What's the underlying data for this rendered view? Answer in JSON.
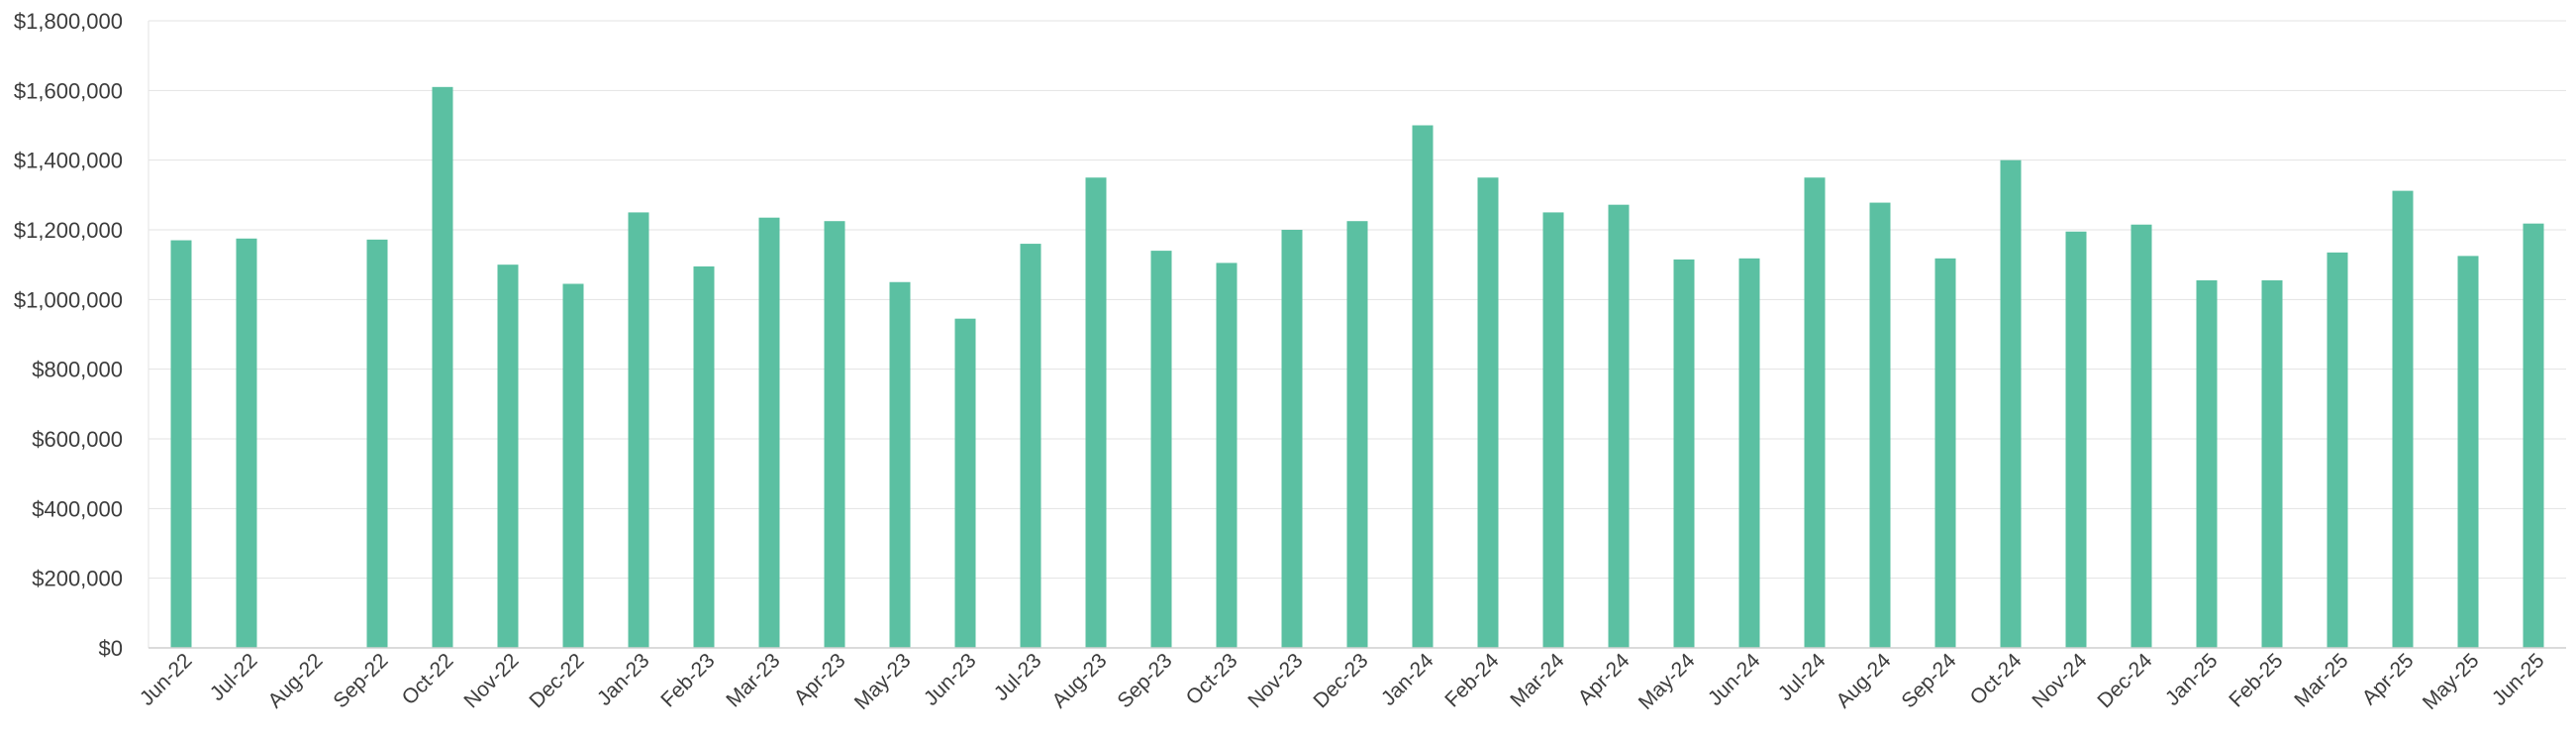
{
  "chart_data": {
    "type": "bar",
    "title": "",
    "xlabel": "",
    "ylabel": "",
    "ylim": [
      0,
      1800000
    ],
    "yticks": [
      0,
      200000,
      400000,
      600000,
      800000,
      1000000,
      1200000,
      1400000,
      1600000,
      1800000
    ],
    "ytick_labels": [
      "$0",
      "$200,000",
      "$400,000",
      "$600,000",
      "$800,000",
      "$1,000,000",
      "$1,200,000",
      "$1,400,000",
      "$1,600,000",
      "$1,800,000"
    ],
    "grid": true,
    "legend": "none",
    "color": "#5bc0a2",
    "categories": [
      "Jun-22",
      "Jul-22",
      "Aug-22",
      "Sep-22",
      "Oct-22",
      "Nov-22",
      "Dec-22",
      "Jan-23",
      "Feb-23",
      "Mar-23",
      "Apr-23",
      "May-23",
      "Jun-23",
      "Jul-23",
      "Aug-23",
      "Sep-23",
      "Oct-23",
      "Nov-23",
      "Dec-23",
      "Jan-24",
      "Feb-24",
      "Mar-24",
      "Apr-24",
      "May-24",
      "Jun-24",
      "Jul-24",
      "Aug-24",
      "Sep-24",
      "Oct-24",
      "Nov-24",
      "Dec-24",
      "Jan-25",
      "Feb-25",
      "Mar-25",
      "Apr-25",
      "May-25",
      "Jun-25"
    ],
    "values": [
      1170000,
      1175000,
      0,
      1172000,
      1610000,
      1100000,
      1045000,
      1250000,
      1095000,
      1235000,
      1225000,
      1050000,
      945000,
      1160000,
      1350000,
      1140000,
      1105000,
      1200000,
      1225000,
      1500000,
      1350000,
      1250000,
      1272000,
      1115000,
      1118000,
      1350000,
      1278000,
      1118000,
      1400000,
      1195000,
      1215000,
      1055000,
      1055000,
      1135000,
      1312000,
      1125000,
      1218000
    ]
  }
}
